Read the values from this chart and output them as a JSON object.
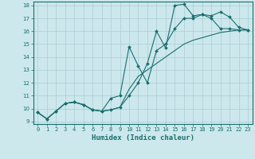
{
  "xlabel": "Humidex (Indice chaleur)",
  "ylabel": "",
  "xlim": [
    -0.5,
    23.5
  ],
  "ylim": [
    8.8,
    18.3
  ],
  "xticks": [
    0,
    1,
    2,
    3,
    4,
    5,
    6,
    7,
    8,
    9,
    10,
    11,
    12,
    13,
    14,
    15,
    16,
    17,
    18,
    19,
    20,
    21,
    22,
    23
  ],
  "yticks": [
    9,
    10,
    11,
    12,
    13,
    14,
    15,
    16,
    17,
    18
  ],
  "bg_color": "#cce8ec",
  "line_color": "#1a6e6e",
  "grid_color": "#aaccd4",
  "line1_x": [
    0,
    1,
    2,
    3,
    4,
    5,
    6,
    7,
    8,
    9,
    10,
    11,
    12,
    13,
    14,
    15,
    16,
    17,
    18,
    19,
    20,
    21,
    22,
    23
  ],
  "line1_y": [
    9.7,
    9.2,
    9.8,
    10.4,
    10.5,
    10.3,
    9.9,
    9.8,
    9.9,
    10.1,
    11.0,
    12.0,
    13.5,
    16.0,
    14.7,
    18.0,
    18.1,
    17.2,
    17.3,
    17.2,
    17.5,
    17.1,
    16.3,
    16.1
  ],
  "line2_x": [
    0,
    1,
    2,
    3,
    4,
    5,
    6,
    7,
    8,
    9,
    10,
    11,
    12,
    13,
    14,
    15,
    16,
    17,
    18,
    19,
    20,
    21,
    22,
    23
  ],
  "line2_y": [
    9.7,
    9.2,
    9.8,
    10.4,
    10.5,
    10.3,
    9.9,
    9.8,
    10.8,
    11.0,
    14.8,
    13.3,
    12.0,
    14.5,
    15.0,
    16.2,
    17.0,
    17.0,
    17.3,
    17.0,
    16.2,
    16.2,
    16.1,
    16.1
  ],
  "line3_x": [
    0,
    1,
    2,
    3,
    4,
    5,
    6,
    7,
    8,
    9,
    10,
    11,
    12,
    13,
    14,
    15,
    16,
    17,
    18,
    19,
    20,
    21,
    22,
    23
  ],
  "line3_y": [
    9.7,
    9.2,
    9.8,
    10.4,
    10.5,
    10.3,
    9.9,
    9.8,
    9.9,
    10.1,
    11.5,
    12.5,
    13.0,
    13.5,
    14.0,
    14.5,
    15.0,
    15.3,
    15.5,
    15.7,
    15.9,
    16.0,
    16.1,
    16.1
  ],
  "lw": 0.8,
  "ms": 2.0,
  "tick_fontsize": 5.0,
  "xlabel_fontsize": 6.5
}
